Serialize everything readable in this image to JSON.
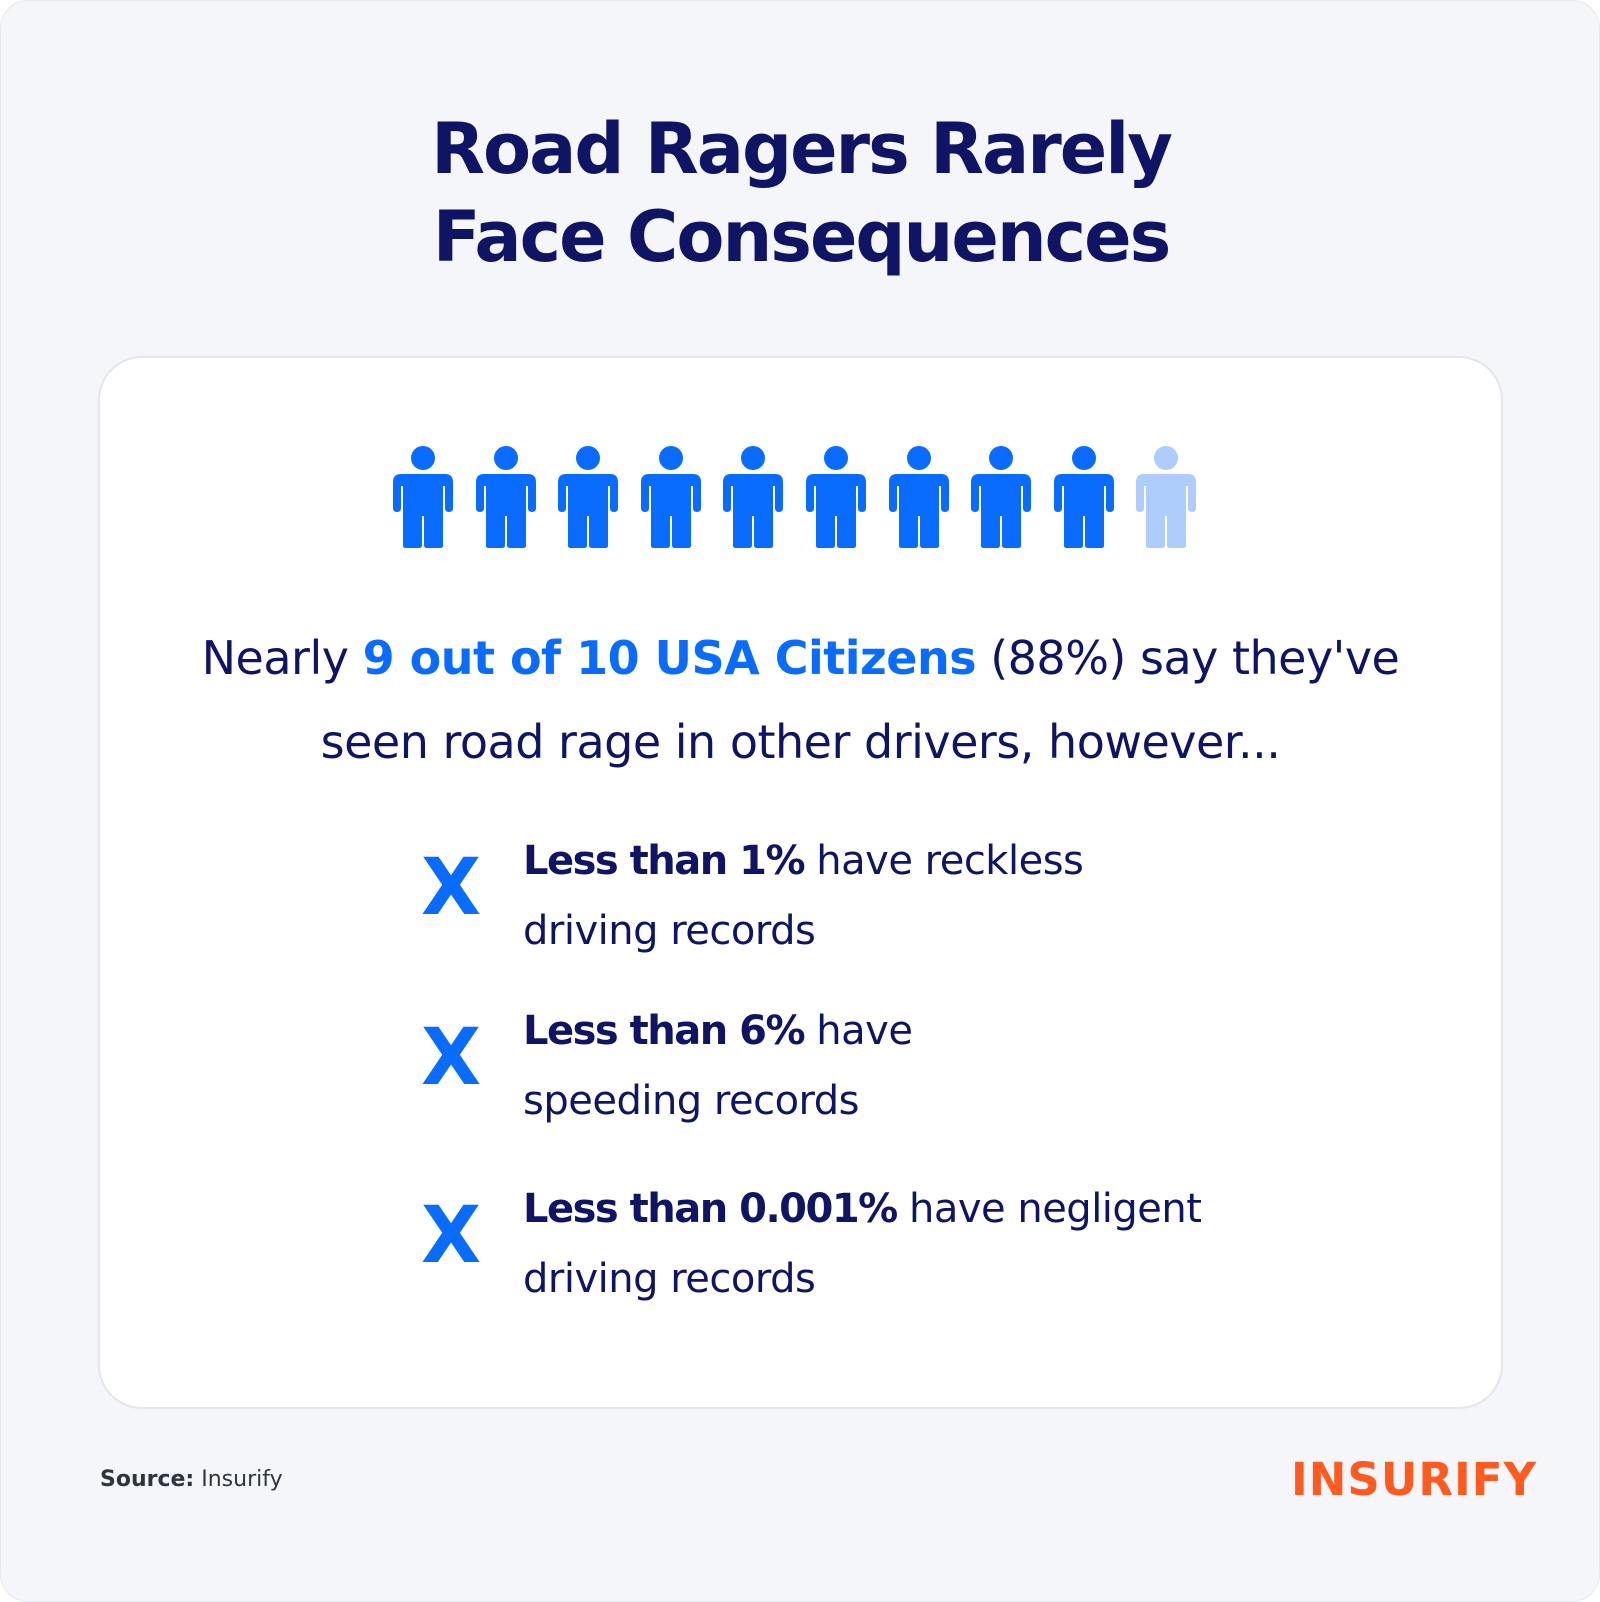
{
  "title": {
    "line1": "Road Ragers Rarely",
    "line2": "Face Consequences"
  },
  "pictogram": {
    "total": 10,
    "highlighted": 9,
    "icon": "person-icon",
    "color_highlight": "#0a6cff",
    "color_muted": "#aecdfc"
  },
  "statement": {
    "prefix": "Nearly ",
    "highlight": "9 out of 10 USA Citizens",
    "suffix": " (88%) say they've",
    "line2": "seen road rage in other drivers, however..."
  },
  "facts": [
    {
      "marker": "X",
      "bold": "Less than 1%",
      "rest": " have reckless",
      "line2": "driving records"
    },
    {
      "marker": "X",
      "bold": "Less than 6%",
      "rest": " have",
      "line2": "speeding records"
    },
    {
      "marker": "X",
      "bold": "Less than 0.001%",
      "rest": "  have negligent",
      "line2": "driving records"
    }
  ],
  "source": {
    "label": "Source:",
    "value": " Insurify"
  },
  "logo": {
    "text": "INSURIFY",
    "color": "#ff5a1f"
  },
  "colors": {
    "navy": "#0f1464",
    "blue": "#0a6cff",
    "background": "#f5f6f9",
    "card": "#ffffff"
  }
}
